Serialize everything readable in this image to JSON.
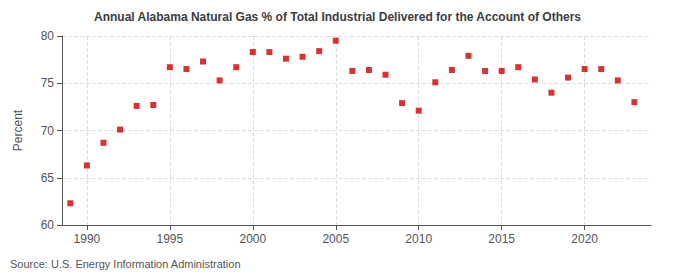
{
  "chart_data": {
    "type": "scatter",
    "title": "Annual Alabama Natural Gas % of Total Industrial Delivered for the Account of Others",
    "ylabel": "Percent",
    "annotation": "Source: U.S. Energy Information Administration",
    "x": [
      1989,
      1990,
      1991,
      1992,
      1993,
      1994,
      1995,
      1996,
      1997,
      1998,
      1999,
      2000,
      2001,
      2002,
      2003,
      2004,
      2005,
      2006,
      2007,
      2008,
      2009,
      2010,
      2011,
      2012,
      2013,
      2014,
      2015,
      2016,
      2017,
      2018,
      2019,
      2020,
      2021,
      2022,
      2023
    ],
    "values": [
      62.3,
      66.3,
      68.7,
      70.1,
      72.6,
      72.7,
      76.7,
      76.5,
      77.3,
      75.3,
      76.7,
      78.3,
      78.3,
      77.6,
      77.8,
      78.4,
      79.5,
      76.3,
      76.4,
      75.9,
      72.9,
      72.1,
      75.1,
      76.4,
      77.9,
      76.3,
      76.3,
      76.7,
      75.4,
      74.0,
      75.6,
      76.5,
      76.5,
      75.3,
      73.0
    ],
    "color": "#cc0000",
    "marker": "square",
    "xlim": [
      1988.5,
      2024
    ],
    "ylim": [
      60,
      80
    ],
    "xticks": [
      1990,
      1995,
      2000,
      2005,
      2010,
      2015,
      2020
    ],
    "yticks": [
      60,
      65,
      70,
      75,
      80
    ],
    "grid": true
  }
}
